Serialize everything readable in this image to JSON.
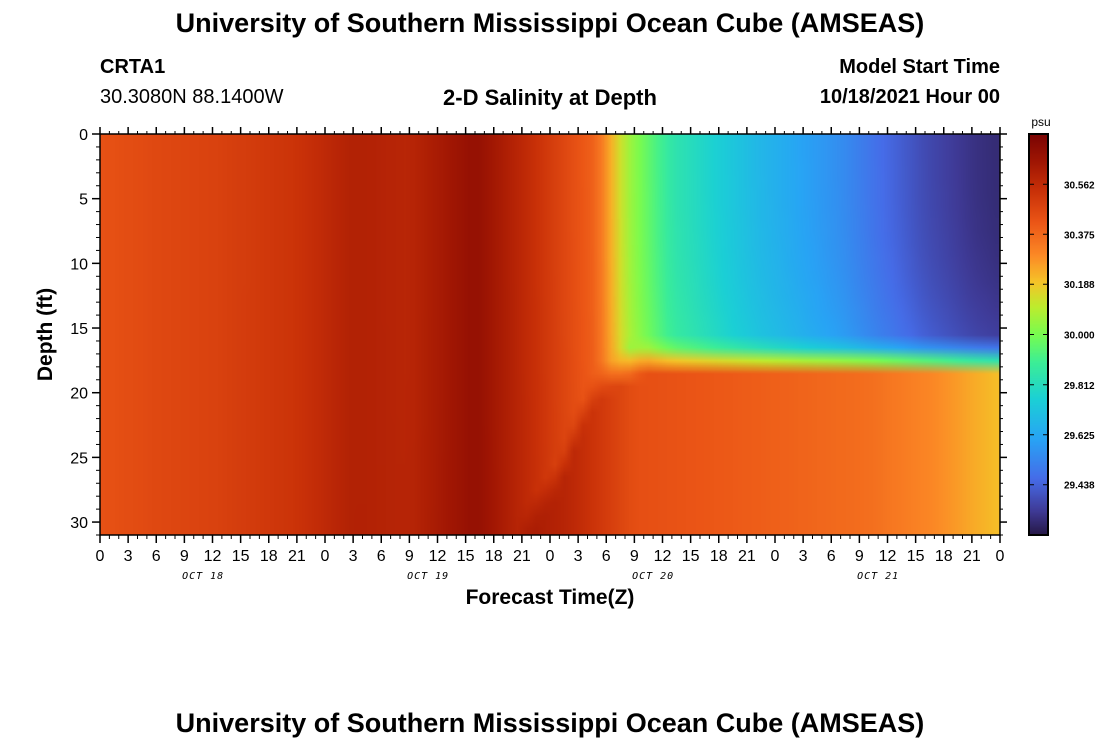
{
  "header": {
    "title": "University of Southern Mississippi Ocean Cube (AMSEAS)",
    "station": "CRTA1",
    "coords": "30.3080N  88.1400W",
    "plot_title": "2-D Salinity at Depth",
    "model_start_label": "Model Start Time",
    "model_start_value": "10/18/2021 Hour 00"
  },
  "footer": {
    "title": "University of Southern Mississippi Ocean Cube (AMSEAS)"
  },
  "chart_data": {
    "type": "heatmap",
    "title": "2-D Salinity at Depth",
    "xlabel": "Forecast Time(Z)",
    "ylabel": "Depth (ft)",
    "x_range_hours": [
      0,
      96
    ],
    "x_tick_step_hours": 3,
    "x_tick_labels": [
      "0",
      "3",
      "6",
      "9",
      "12",
      "15",
      "18",
      "21",
      "0",
      "3",
      "6",
      "9",
      "12",
      "15",
      "18",
      "21",
      "0",
      "3",
      "6",
      "9",
      "12",
      "15",
      "18",
      "21",
      "0",
      "3",
      "6",
      "9",
      "12",
      "15",
      "18",
      "21",
      "0"
    ],
    "date_labels": [
      {
        "label": "OCT 18",
        "hour": 11
      },
      {
        "label": "OCT 19",
        "hour": 35
      },
      {
        "label": "OCT 20",
        "hour": 59
      },
      {
        "label": "OCT 21",
        "hour": 83
      }
    ],
    "y_range_ft": [
      0,
      31
    ],
    "y_ticks": [
      "0",
      "5",
      "10",
      "15",
      "20",
      "25",
      "30"
    ],
    "colorbar": {
      "unit": "psu",
      "range": [
        29.25,
        30.75
      ],
      "tick_labels": [
        "30.562",
        "30.375",
        "30.188",
        "30.000",
        "29.812",
        "29.625",
        "29.438"
      ]
    },
    "field_description": {
      "surface_time_profile_psu": [
        [
          0,
          30.43
        ],
        [
          6,
          30.46
        ],
        [
          12,
          30.48
        ],
        [
          21,
          30.53
        ],
        [
          27,
          30.6
        ],
        [
          33,
          30.58
        ],
        [
          40,
          30.68
        ],
        [
          46,
          30.55
        ],
        [
          53,
          30.38
        ],
        [
          56,
          30.08
        ],
        [
          58,
          29.98
        ],
        [
          61,
          29.85
        ],
        [
          70,
          29.68
        ],
        [
          79,
          29.55
        ],
        [
          83,
          29.47
        ],
        [
          88,
          29.38
        ],
        [
          93,
          29.32
        ],
        [
          96,
          29.3
        ]
      ],
      "mixed_layer_depth_ft": [
        [
          0,
          31
        ],
        [
          44,
          31
        ],
        [
          46,
          28
        ],
        [
          49,
          25
        ],
        [
          51,
          21
        ],
        [
          53,
          18
        ],
        [
          55,
          17
        ],
        [
          58,
          16
        ],
        [
          96,
          16
        ]
      ],
      "bottom_time_profile_psu": [
        [
          0,
          30.43
        ],
        [
          21,
          30.53
        ],
        [
          27,
          30.6
        ],
        [
          40,
          30.68
        ],
        [
          50,
          30.58
        ],
        [
          57,
          30.44
        ],
        [
          70,
          30.4
        ],
        [
          82,
          30.36
        ],
        [
          89,
          30.3
        ],
        [
          96,
          30.2
        ]
      ]
    }
  },
  "colors": {
    "background": "#ffffff",
    "axis": "#000000"
  }
}
